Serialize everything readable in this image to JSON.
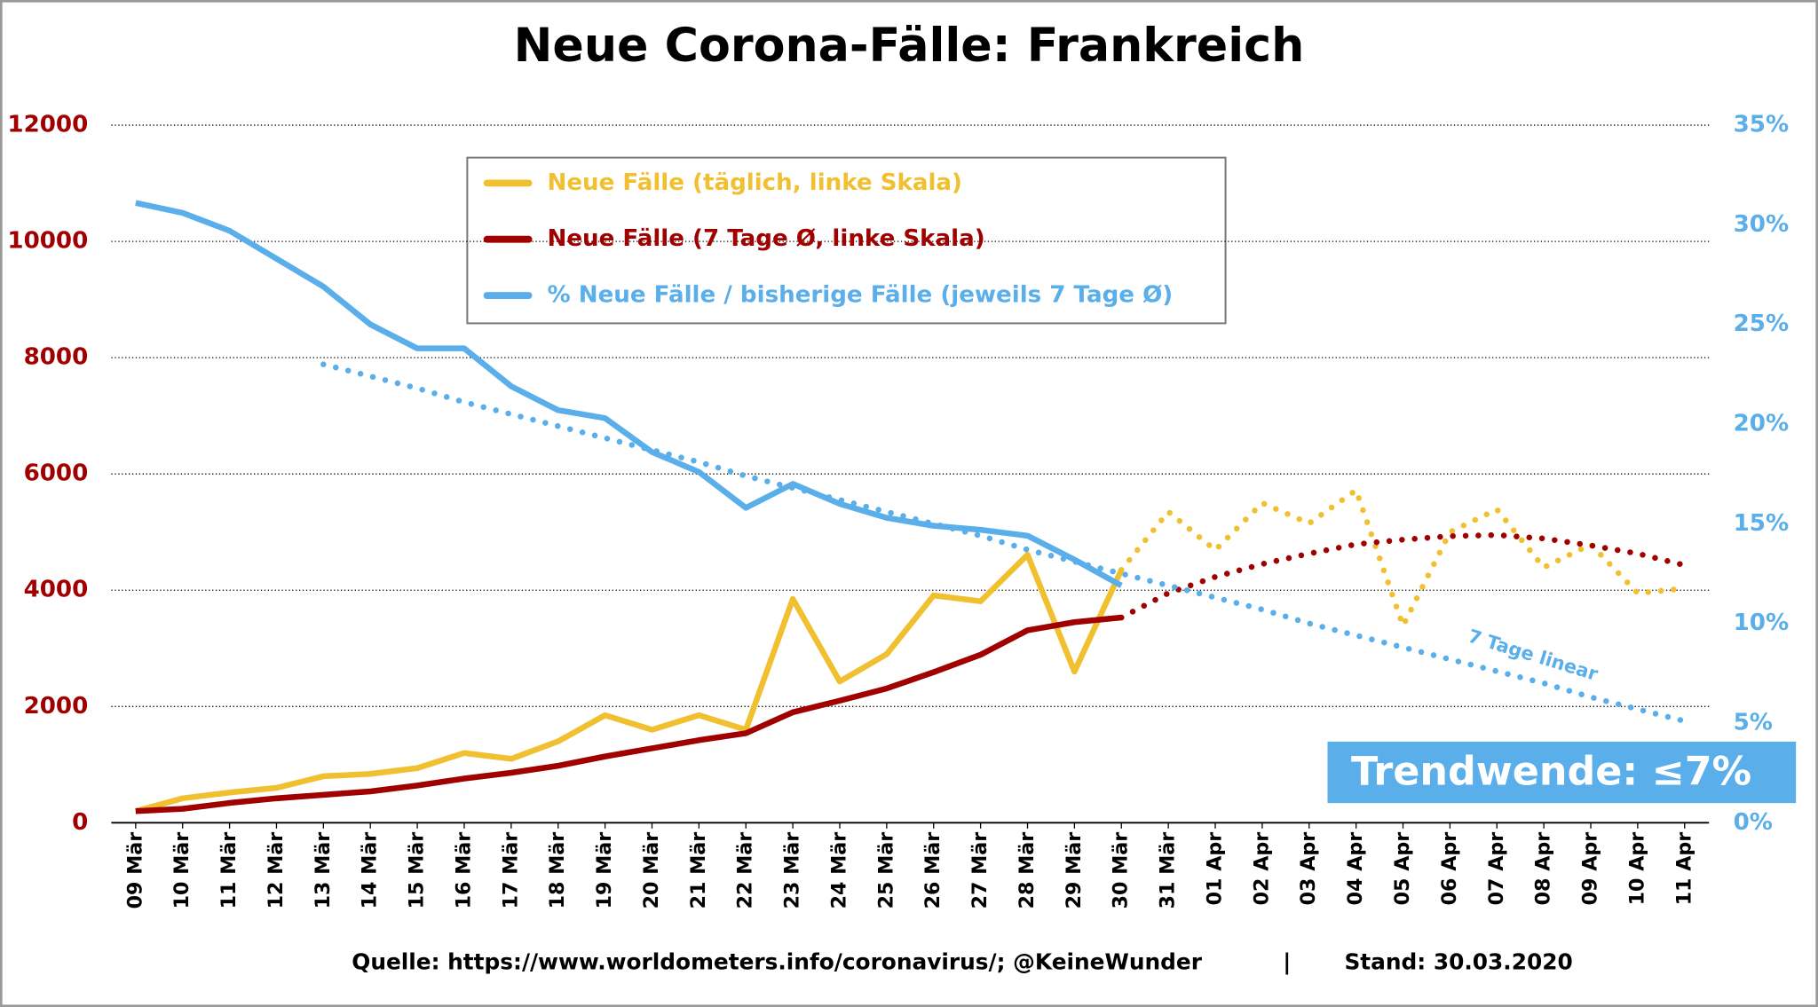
{
  "chart_data": {
    "type": "line",
    "title": "Neue Corona-Fälle: Frankreich",
    "categories": [
      "09 Mär",
      "10 Mär",
      "11 Mär",
      "12 Mär",
      "13 Mär",
      "14 Mär",
      "15 Mär",
      "16 Mär",
      "17 Mär",
      "18 Mär",
      "19 Mär",
      "20 Mär",
      "21 Mär",
      "22 Mär",
      "23 Mär",
      "24 Mär",
      "25 Mär",
      "26 Mär",
      "27 Mär",
      "28 Mär",
      "29 Mär",
      "30 Mär",
      "31 Mär",
      "01 Apr",
      "02 Apr",
      "03 Apr",
      "04 Apr",
      "05 Apr",
      "06 Apr",
      "07 Apr",
      "08 Apr",
      "09 Apr",
      "10 Apr",
      "11 Apr"
    ],
    "series": [
      {
        "name": "Neue Fälle (täglich, linke Skala)",
        "color": "#f0c030",
        "values": [
          200,
          420,
          520,
          600,
          800,
          840,
          940,
          1200,
          1100,
          1400,
          1850,
          1600,
          1850,
          1600,
          3850,
          2430,
          2900,
          3910,
          3810,
          4610,
          2600,
          4350,
          null,
          null,
          null,
          null,
          null,
          null,
          null,
          null,
          null,
          null,
          null,
          null
        ],
        "projection": [
          null,
          null,
          null,
          null,
          null,
          null,
          null,
          null,
          null,
          null,
          null,
          null,
          null,
          null,
          null,
          null,
          null,
          null,
          null,
          null,
          null,
          4350,
          5350,
          4690,
          5500,
          5150,
          5720,
          3390,
          5000,
          5390,
          4390,
          4790,
          3950,
          4030
        ]
      },
      {
        "name": "Neue Fälle (7 Tage Ø, linke Skala)",
        "color": "#a00000",
        "values": [
          200,
          240,
          340,
          420,
          480,
          540,
          640,
          760,
          860,
          980,
          1140,
          1280,
          1420,
          1540,
          1900,
          2100,
          2310,
          2590,
          2890,
          3310,
          3450,
          3530,
          null,
          null,
          null,
          null,
          null,
          null,
          null,
          null,
          null,
          null,
          null,
          null
        ],
        "projection": [
          null,
          null,
          null,
          null,
          null,
          null,
          null,
          null,
          null,
          null,
          null,
          null,
          null,
          null,
          null,
          null,
          null,
          null,
          null,
          null,
          null,
          3530,
          3950,
          4230,
          4450,
          4630,
          4790,
          4870,
          4930,
          4950,
          4890,
          4770,
          4630,
          4430
        ]
      },
      {
        "name": "% Neue Fälle / bisherige Fälle (jeweils 7 Tage Ø)",
        "color": "#5aaeea",
        "axis": "y2",
        "values": [
          31.1,
          30.6,
          29.7,
          28.3,
          26.9,
          25.0,
          23.8,
          23.8,
          21.9,
          20.7,
          20.3,
          18.6,
          17.6,
          15.8,
          17.0,
          16.0,
          15.3,
          14.9,
          14.7,
          14.4,
          13.2,
          11.9,
          null,
          null,
          null,
          null,
          null,
          null,
          null,
          null,
          null,
          null,
          null,
          null
        ],
        "projection": [
          null,
          null,
          null,
          null,
          23.0,
          22.4,
          21.8,
          21.1,
          20.5,
          19.9,
          19.3,
          18.7,
          18.1,
          17.4,
          16.8,
          16.2,
          15.6,
          15.0,
          14.4,
          13.7,
          13.1,
          12.5,
          11.9,
          11.3,
          10.7,
          10.0,
          9.4,
          8.8,
          8.2,
          7.6,
          7.0,
          6.3,
          5.7,
          5.1
        ],
        "projection_label": "7 Tage linear"
      }
    ],
    "ylim": [
      0,
      12000
    ],
    "yticks": [
      0,
      2000,
      4000,
      6000,
      8000,
      10000,
      12000
    ],
    "y2lim": [
      0,
      35
    ],
    "y2ticks": [
      {
        "value": 0,
        "label": "0%"
      },
      {
        "value": 5,
        "label": "5%"
      },
      {
        "value": 10,
        "label": "10%"
      },
      {
        "value": 15,
        "label": "15%"
      },
      {
        "value": 20,
        "label": "20%"
      },
      {
        "value": 25,
        "label": "25%"
      },
      {
        "value": 30,
        "label": "30%"
      },
      {
        "value": 35,
        "label": "35%"
      }
    ],
    "grid": true,
    "legend": "top",
    "annotation": "Trendwende: ≤7%",
    "source": "Quelle: https://www.worldometers.info/coronavirus/; @KeineWunder",
    "date": "Stand: 30.03.2020"
  }
}
